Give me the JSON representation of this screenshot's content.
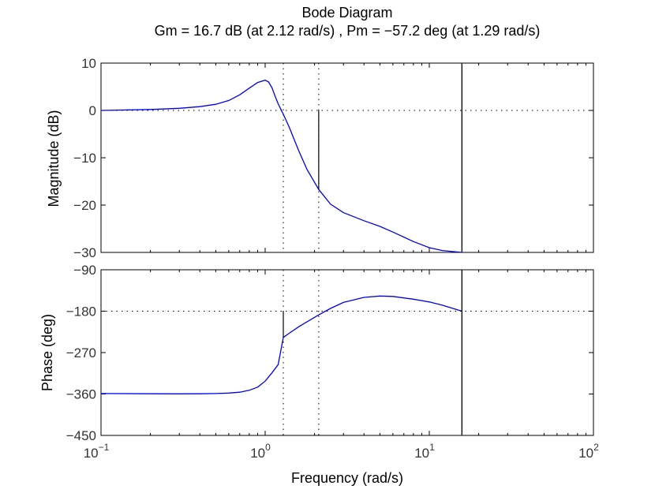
{
  "chart_data": {
    "type": "line",
    "title": "Bode Diagram",
    "subtitle": "Gm = 16.7 dB (at 2.12 rad/s) ,  Pm = −57.2 deg (at 1.29 rad/s)",
    "xlabel": "Frequency  (rad/s)",
    "x_scale": "log",
    "xlim": [
      0.1,
      100
    ],
    "x_ticks": [
      {
        "base": "10",
        "exp": "−1",
        "value": 0.1
      },
      {
        "base": "10",
        "exp": "0",
        "value": 1
      },
      {
        "base": "10",
        "exp": "1",
        "value": 10
      },
      {
        "base": "10",
        "exp": "2",
        "value": 100
      }
    ],
    "grid": false,
    "line_color": "#0000ee",
    "margins": {
      "gain_margin_db": 16.7,
      "gain_crossover_rad_s": 2.12,
      "phase_margin_deg": -57.2,
      "phase_crossover_rad_s": 1.29
    },
    "vertical_marker_rad_s": 15.8,
    "panels": [
      {
        "ylabel": "Magnitude (dB)",
        "ylim": [
          -30,
          10
        ],
        "y_ticks": [
          10,
          0,
          -10,
          -20,
          -30
        ],
        "y_tick_labels": [
          "10",
          "0",
          "−10",
          "−20",
          "−30"
        ],
        "reference_value": 0,
        "series": [
          {
            "x": [
              0.1,
              0.2,
              0.3,
              0.4,
              0.5,
              0.6,
              0.7,
              0.8,
              0.9,
              1.0,
              1.05,
              1.1,
              1.15,
              1.2,
              1.29,
              1.4,
              1.6,
              1.8,
              2.12,
              2.5,
              3.0,
              4.0,
              5.0,
              6.0,
              8.0,
              10.0,
              12.0,
              15.8
            ],
            "y": [
              0.0,
              0.2,
              0.45,
              0.8,
              1.3,
              2.1,
              3.3,
              4.7,
              5.9,
              6.4,
              6.0,
              4.8,
              3.0,
              1.4,
              -0.8,
              -3.5,
              -8.5,
              -12.5,
              -16.7,
              -19.8,
              -21.6,
              -23.3,
              -24.5,
              -25.7,
              -27.7,
              -29.0,
              -29.6,
              -30.0
            ]
          }
        ]
      },
      {
        "ylabel": "Phase (deg)",
        "ylim": [
          -450,
          -90
        ],
        "y_ticks": [
          -90,
          -180,
          -270,
          -360,
          -450
        ],
        "y_tick_labels": [
          "−90",
          "−180",
          "−270",
          "−360",
          "−450"
        ],
        "reference_value": -180,
        "series": [
          {
            "x": [
              0.1,
              0.2,
              0.3,
              0.4,
              0.5,
              0.6,
              0.7,
              0.8,
              0.9,
              1.0,
              1.1,
              1.2,
              1.29,
              1.4,
              1.6,
              1.8,
              2.12,
              2.5,
              3.0,
              4.0,
              5.0,
              6.0,
              8.0,
              10.0,
              12.0,
              15.8
            ],
            "y": [
              -359,
              -359.5,
              -359.7,
              -359.5,
              -359,
              -358,
              -356,
              -352,
              -345,
              -332,
              -314,
              -296,
              -237,
              -228,
              -214,
              -203,
              -188,
              -174,
              -161,
              -150,
              -147,
              -148,
              -154,
              -160,
              -167,
              -180
            ]
          }
        ]
      }
    ]
  }
}
